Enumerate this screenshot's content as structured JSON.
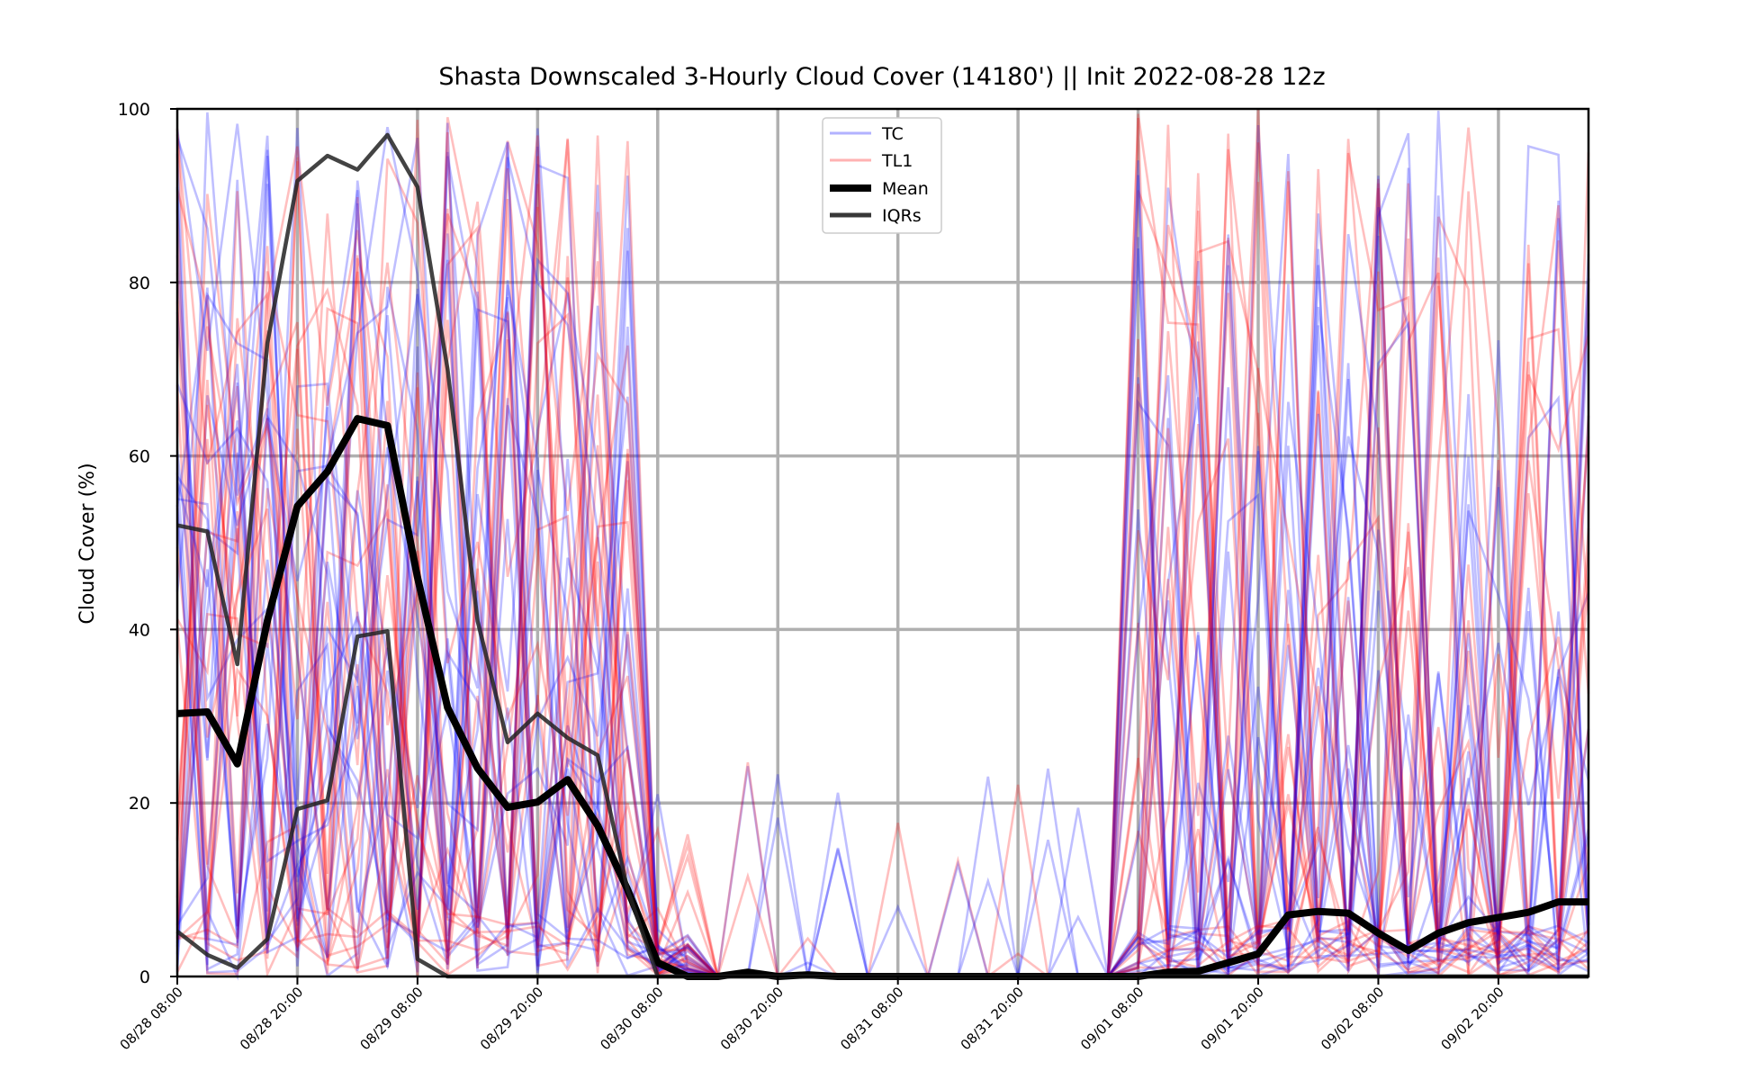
{
  "chart_data": {
    "type": "line",
    "title": "Shasta Downscaled 3-Hourly Cloud Cover (14180') || Init 2022-08-28 12z",
    "ylabel": "Cloud Cover (%)",
    "xlabel": "",
    "ylim": [
      0,
      100
    ],
    "yticks": [
      0,
      20,
      40,
      60,
      80,
      100
    ],
    "x_range_hours": [
      0,
      141
    ],
    "xticks": [
      {
        "hour": 0,
        "label": "08/28 08:00"
      },
      {
        "hour": 12,
        "label": "08/28 20:00"
      },
      {
        "hour": 24,
        "label": "08/29 08:00"
      },
      {
        "hour": 36,
        "label": "08/29 20:00"
      },
      {
        "hour": 48,
        "label": "08/30 08:00"
      },
      {
        "hour": 60,
        "label": "08/30 20:00"
      },
      {
        "hour": 72,
        "label": "08/31 08:00"
      },
      {
        "hour": 84,
        "label": "08/31 20:00"
      },
      {
        "hour": 96,
        "label": "09/01 08:00"
      },
      {
        "hour": 108,
        "label": "09/01 20:00"
      },
      {
        "hour": 120,
        "label": "09/02 08:00"
      },
      {
        "hour": 132,
        "label": "09/02 20:00"
      }
    ],
    "grid": true,
    "legend_position": "top-center",
    "legend": [
      {
        "label": "TC",
        "color": "#0000ff",
        "style": "thin-translucent"
      },
      {
        "label": "TL1",
        "color": "#ff0000",
        "style": "thin-translucent"
      },
      {
        "label": "Mean",
        "color": "#000000",
        "style": "thick"
      },
      {
        "label": "IQRs",
        "color": "#333333",
        "style": "medium"
      }
    ],
    "x_hours": [
      0,
      3,
      6,
      9,
      12,
      15,
      18,
      21,
      24,
      27,
      30,
      33,
      36,
      39,
      42,
      45,
      48,
      51,
      54,
      57,
      60,
      63,
      66,
      69,
      72,
      75,
      78,
      81,
      84,
      87,
      90,
      93,
      96,
      99,
      102,
      105,
      108,
      111,
      114,
      117,
      120,
      123,
      126,
      129,
      132,
      135,
      138,
      141
    ],
    "series": [
      {
        "name": "Mean",
        "color": "#000000",
        "values": [
          30.3,
          30.5,
          24.5,
          41,
          54.2,
          58.2,
          64.3,
          63.5,
          46,
          31,
          24,
          19.5,
          20.1,
          22.7,
          17.4,
          10,
          1.6,
          0,
          0,
          0.5,
          0,
          0.2,
          0,
          0,
          0,
          0,
          0,
          0,
          0,
          0,
          0,
          0,
          0,
          0.5,
          0.6,
          1.6,
          2.6,
          7.1,
          7.5,
          7.3,
          5,
          3,
          5,
          6.2,
          6.8,
          7.4,
          8.6,
          8.6
        ]
      },
      {
        "name": "IQRs",
        "color": "#222222",
        "values": [
          52,
          51.3,
          36,
          73,
          91.7,
          94.6,
          93,
          97,
          91,
          70,
          41,
          27,
          30.3,
          27.5,
          25.5,
          10,
          0,
          0,
          0,
          0,
          0,
          0,
          0,
          0,
          0,
          0,
          0,
          0,
          0,
          0,
          0,
          0,
          0,
          0,
          0,
          0,
          0,
          0,
          0,
          0,
          0,
          0,
          0,
          0,
          0,
          0,
          0,
          0
        ]
      },
      {
        "name": "IQRs",
        "color": "#222222",
        "values": [
          5.2,
          2.5,
          1,
          4.3,
          19.3,
          20.3,
          39.2,
          39.8,
          2,
          0,
          0,
          0,
          0,
          0,
          0,
          0,
          0,
          0,
          0,
          0,
          0,
          0,
          0,
          0,
          0,
          0,
          0,
          0,
          0,
          0,
          0,
          0,
          0,
          0,
          0,
          0,
          0,
          0,
          0,
          0,
          0,
          0,
          0,
          0,
          0,
          0,
          0,
          0
        ]
      }
    ],
    "notes_members": "Numerous thin translucent TC (blue) and TL1 (red) ensemble member lines; dense and varied 0–100 through 08/30 08:00, near zero 08/30–09/01, scattered rises again from 09/01 to end."
  },
  "colors": {
    "tc": "#0000ff",
    "tl1": "#ff0000",
    "grid": "#b0b0b0",
    "mean": "#000000",
    "iqr": "#222222"
  }
}
